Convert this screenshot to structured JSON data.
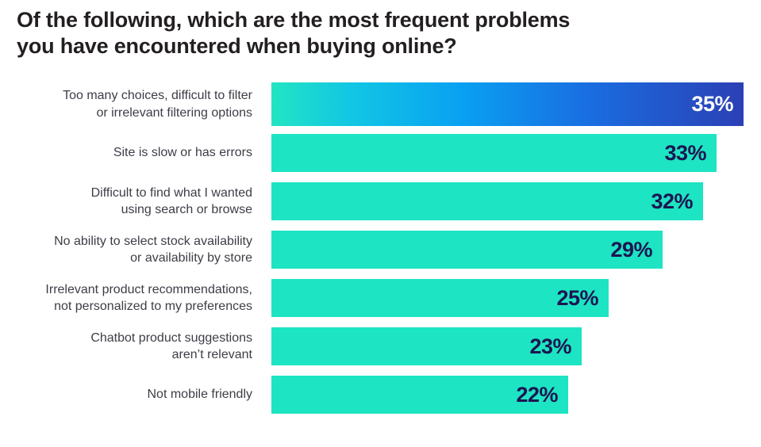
{
  "chart_data": {
    "type": "bar",
    "orientation": "horizontal",
    "title": "Of the following, which are the most frequent problems you have encountered when buying online?",
    "categories": [
      "Too many choices, difficult to filter\nor irrelevant filtering options",
      "Site is slow or has errors",
      "Difficult to find what I wanted\nusing search or browse",
      "No ability to select stock availability\nor availability by store",
      "Irrelevant product recommendations,\nnot personalized to my preferences",
      "Chatbot product suggestions\naren’t relevant",
      "Not mobile friendly"
    ],
    "values": [
      35,
      33,
      32,
      29,
      25,
      23,
      22
    ],
    "value_suffix": "%",
    "xlim": [
      0,
      35.2
    ],
    "grid": false,
    "legend": false,
    "highlight_index": 0
  },
  "colors": {
    "background": "#FFFFFF",
    "title_color": "#231F20",
    "label_color": "#3D3D47",
    "bar_teal": "#1DE4C2",
    "gradient": [
      "#22E5C2 0%",
      "#12C6E4 17%",
      "#09A1F2 40%",
      "#1A6CE0 68%",
      "#2B40B5 100%"
    ],
    "value_navy": "#1D1551",
    "value_on_gradient": "#FFFFFF"
  }
}
